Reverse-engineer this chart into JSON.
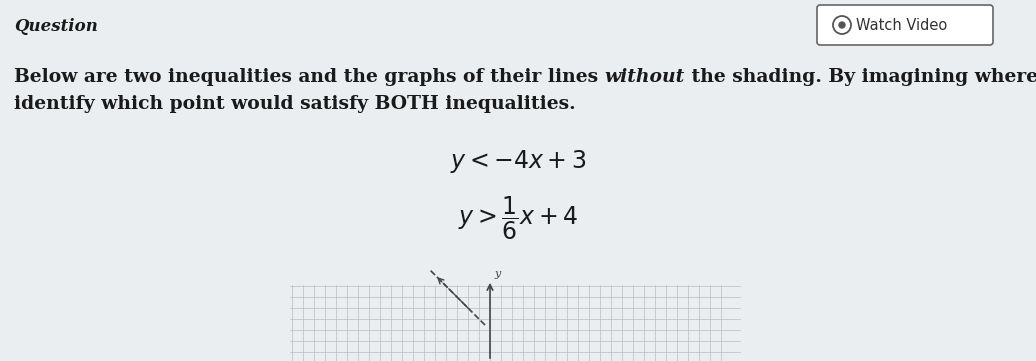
{
  "background_color": "#eaeef0",
  "title_text": "Question",
  "title_fontsize": 12,
  "watch_video_text": "Watch Video",
  "body_fontsize": 13.5,
  "ineq1_latex": "$y < -4x + 3$",
  "ineq2_latex": "$y > \\dfrac{1}{6}x + 4$",
  "ineq_fontsize": 17,
  "grid_color": "#bbbbbb",
  "axis_color": "#444444",
  "text_color": "#1a1a1a",
  "line1_color": "#333333",
  "body_line1_normal1": "Below are two inequalities and the graphs of their lines ",
  "body_line1_italic": "without",
  "body_line1_normal2": " the shading. By imagining where the sh",
  "body_line2": "identify which point would satisfy BOTH inequalities."
}
